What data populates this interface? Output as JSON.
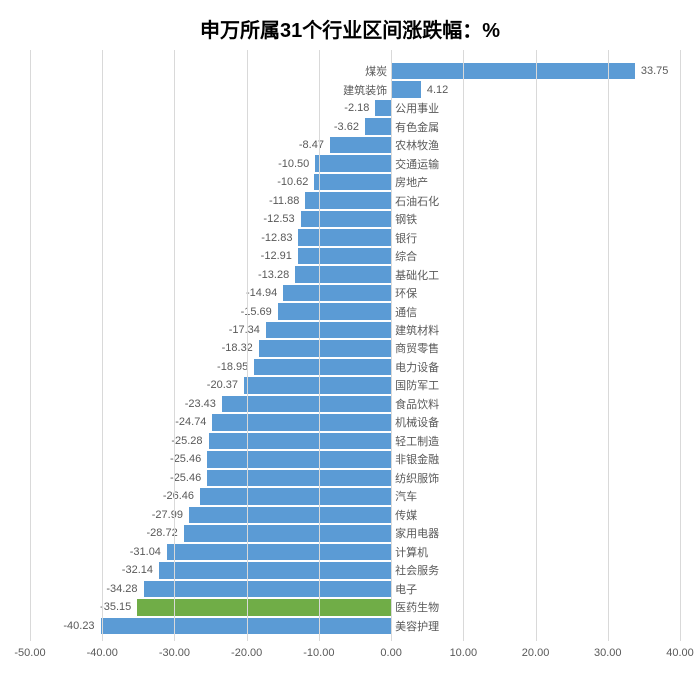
{
  "chart": {
    "type": "bar",
    "orientation": "horizontal",
    "title": "申万所属31个行业区间涨跌幅：%",
    "title_fontsize": 20,
    "title_color": "#000000",
    "background_color": "#ffffff",
    "grid_color": "#d9d9d9",
    "axis_label_color": "#595959",
    "axis_label_fontsize": 11,
    "category_label_fontsize": 11,
    "value_label_fontsize": 11,
    "xlim": [
      -50,
      40
    ],
    "xtick_step": 10,
    "xticks": [
      "-50.00",
      "-40.00",
      "-30.00",
      "-20.00",
      "-10.00",
      "0.00",
      "10.00",
      "20.00",
      "30.00",
      "40.00"
    ],
    "default_bar_color": "#5b9bd5",
    "highlight_bar_color": "#70ad47",
    "bar_gap_ratio": 0.12,
    "series": [
      {
        "category": "煤炭",
        "value": 33.75,
        "label": "33.75"
      },
      {
        "category": "建筑装饰",
        "value": 4.12,
        "label": "4.12"
      },
      {
        "category": "公用事业",
        "value": -2.18,
        "label": "-2.18"
      },
      {
        "category": "有色金属",
        "value": -3.62,
        "label": "-3.62"
      },
      {
        "category": "农林牧渔",
        "value": -8.47,
        "label": "-8.47"
      },
      {
        "category": "交通运输",
        "value": -10.5,
        "label": "-10.50"
      },
      {
        "category": "房地产",
        "value": -10.62,
        "label": "-10.62"
      },
      {
        "category": "石油石化",
        "value": -11.88,
        "label": "-11.88"
      },
      {
        "category": "钢铁",
        "value": -12.53,
        "label": "-12.53"
      },
      {
        "category": "银行",
        "value": -12.83,
        "label": "-12.83"
      },
      {
        "category": "综合",
        "value": -12.91,
        "label": "-12.91"
      },
      {
        "category": "基础化工",
        "value": -13.28,
        "label": "-13.28"
      },
      {
        "category": "环保",
        "value": -14.94,
        "label": "-14.94"
      },
      {
        "category": "通信",
        "value": -15.69,
        "label": "-15.69"
      },
      {
        "category": "建筑材料",
        "value": -17.34,
        "label": "-17.34"
      },
      {
        "category": "商贸零售",
        "value": -18.32,
        "label": "-18.32"
      },
      {
        "category": "电力设备",
        "value": -18.95,
        "label": "-18.95"
      },
      {
        "category": "国防军工",
        "value": -20.37,
        "label": "-20.37"
      },
      {
        "category": "食品饮料",
        "value": -23.43,
        "label": "-23.43"
      },
      {
        "category": "机械设备",
        "value": -24.74,
        "label": "-24.74"
      },
      {
        "category": "轻工制造",
        "value": -25.28,
        "label": "-25.28"
      },
      {
        "category": "非银金融",
        "value": -25.46,
        "label": "-25.46"
      },
      {
        "category": "纺织服饰",
        "value": -25.46,
        "label": "-25.46"
      },
      {
        "category": "汽车",
        "value": -26.46,
        "label": "-26.46"
      },
      {
        "category": "传媒",
        "value": -27.99,
        "label": "-27.99"
      },
      {
        "category": "家用电器",
        "value": -28.72,
        "label": "-28.72"
      },
      {
        "category": "计算机",
        "value": -31.04,
        "label": "-31.04"
      },
      {
        "category": "社会服务",
        "value": -32.14,
        "label": "-32.14"
      },
      {
        "category": "电子",
        "value": -34.28,
        "label": "-34.28"
      },
      {
        "category": "医药生物",
        "value": -35.15,
        "label": "-35.15",
        "highlight": true
      },
      {
        "category": "美容护理",
        "value": -40.23,
        "label": "-40.23"
      }
    ]
  }
}
